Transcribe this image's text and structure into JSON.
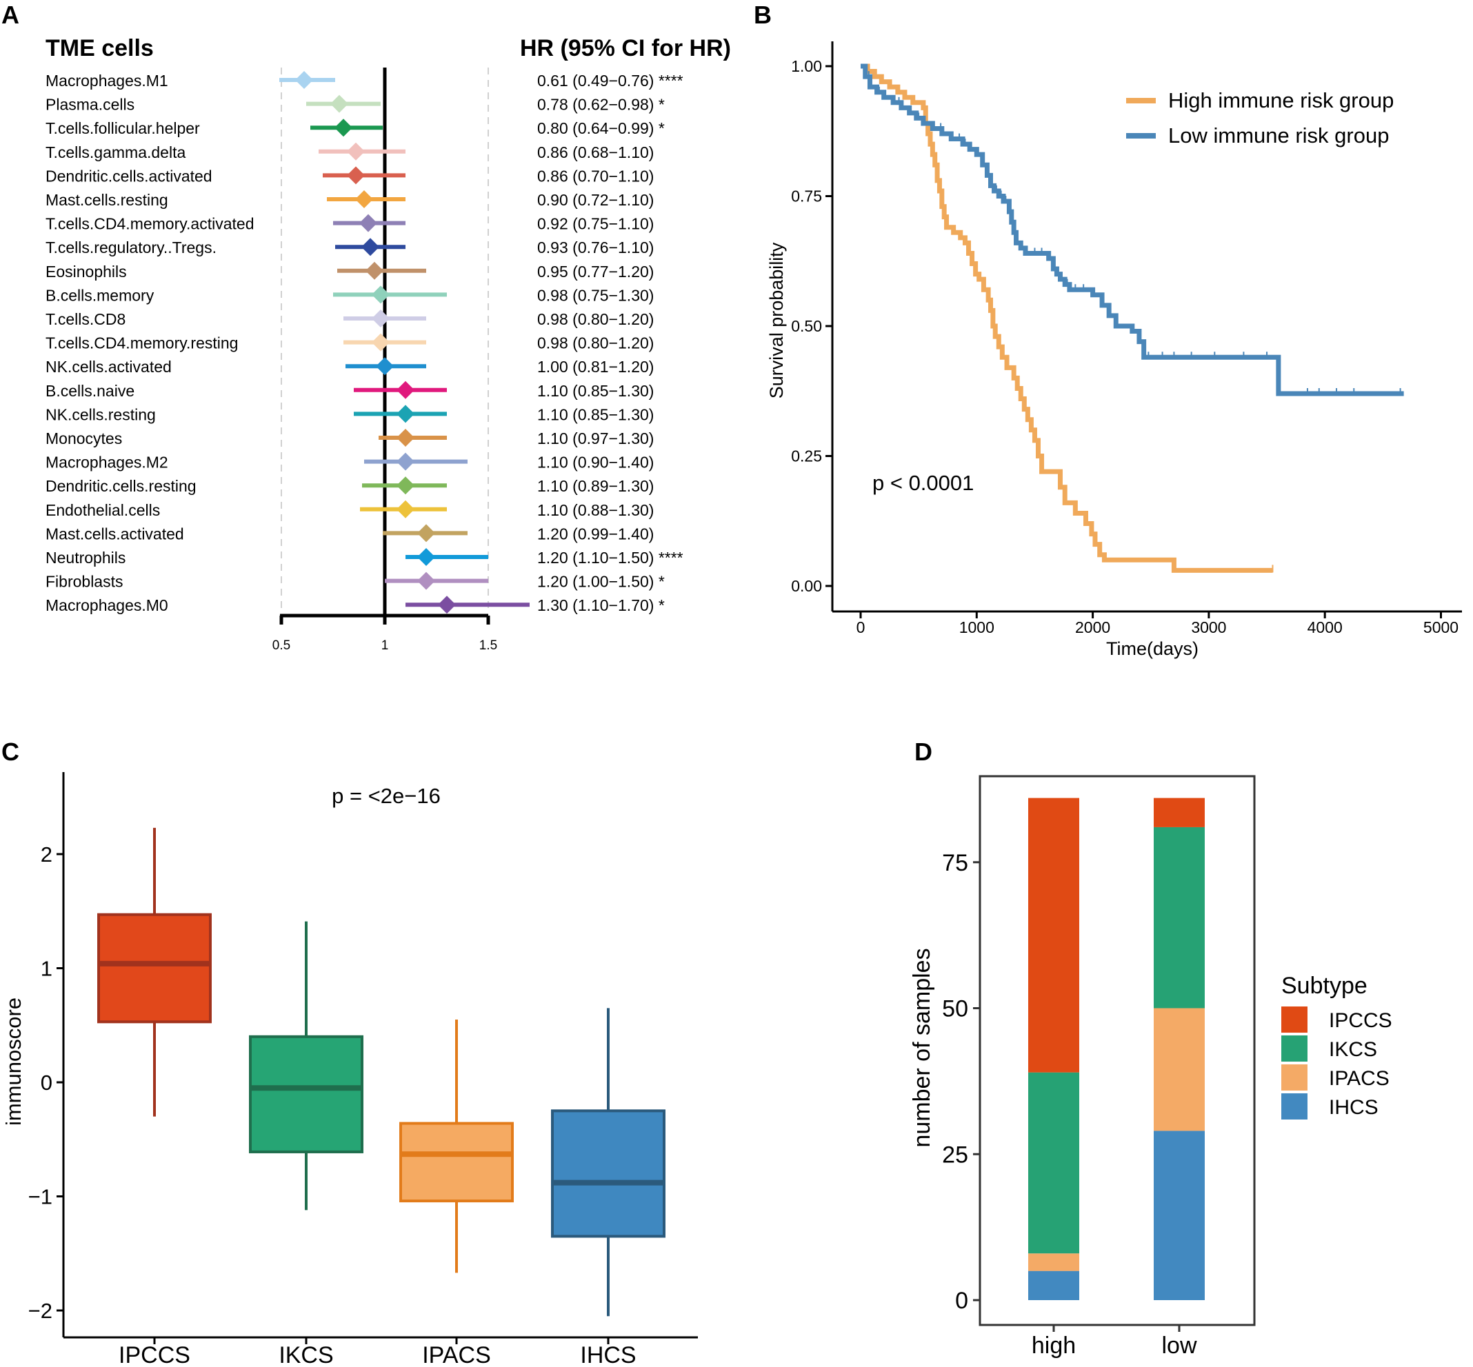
{
  "panels": {
    "A": "A",
    "B": "B",
    "C": "C",
    "D": "D"
  },
  "chart_data": [
    {
      "id": "A",
      "type": "forest",
      "title_left": "TME cells",
      "title_right": "HR (95% CI for HR)",
      "xlim": [
        0.5,
        1.5
      ],
      "xticks": [
        0.5,
        1,
        1.5
      ],
      "xtick_labels": [
        "0.5",
        "1",
        "1.5"
      ],
      "rows": [
        {
          "label": "Macrophages.M1",
          "hr": 0.61,
          "lo": 0.49,
          "hi": 0.76,
          "text": "0.61 (0.49−0.76) ****",
          "color": "#a9d3f0"
        },
        {
          "label": "Plasma.cells",
          "hr": 0.78,
          "lo": 0.62,
          "hi": 0.98,
          "text": "0.78 (0.62−0.98) *",
          "color": "#c5e0bf"
        },
        {
          "label": "T.cells.follicular.helper",
          "hr": 0.8,
          "lo": 0.64,
          "hi": 0.99,
          "text": "0.80 (0.64−0.99) *",
          "color": "#1a9850"
        },
        {
          "label": "T.cells.gamma.delta",
          "hr": 0.86,
          "lo": 0.68,
          "hi": 1.1,
          "text": "0.86 (0.68−1.10)",
          "color": "#f1c0bc"
        },
        {
          "label": "Dendritic.cells.activated",
          "hr": 0.86,
          "lo": 0.7,
          "hi": 1.1,
          "text": "0.86 (0.70−1.10)",
          "color": "#d9604f"
        },
        {
          "label": "Mast.cells.resting",
          "hr": 0.9,
          "lo": 0.72,
          "hi": 1.1,
          "text": "0.90 (0.72−1.10)",
          "color": "#f2a640"
        },
        {
          "label": "T.cells.CD4.memory.activated",
          "hr": 0.92,
          "lo": 0.75,
          "hi": 1.1,
          "text": "0.92 (0.75−1.10)",
          "color": "#8e80b5"
        },
        {
          "label": "T.cells.regulatory..Tregs.",
          "hr": 0.93,
          "lo": 0.76,
          "hi": 1.1,
          "text": "0.93 (0.76−1.10)",
          "color": "#2e4a9e"
        },
        {
          "label": "Eosinophils",
          "hr": 0.95,
          "lo": 0.77,
          "hi": 1.2,
          "text": "0.95 (0.77−1.20)",
          "color": "#c0916a"
        },
        {
          "label": "B.cells.memory",
          "hr": 0.98,
          "lo": 0.75,
          "hi": 1.3,
          "text": "0.98 (0.75−1.30)",
          "color": "#8fd1bb"
        },
        {
          "label": "T.cells.CD8",
          "hr": 0.98,
          "lo": 0.8,
          "hi": 1.2,
          "text": "0.98 (0.80−1.20)",
          "color": "#cfcde6"
        },
        {
          "label": "T.cells.CD4.memory.resting",
          "hr": 0.98,
          "lo": 0.8,
          "hi": 1.2,
          "text": "0.98 (0.80−1.20)",
          "color": "#f8d6b0"
        },
        {
          "label": "NK.cells.activated",
          "hr": 1.0,
          "lo": 0.81,
          "hi": 1.2,
          "text": "1.00 (0.81−1.20)",
          "color": "#1f8fcf"
        },
        {
          "label": "B.cells.naive",
          "hr": 1.1,
          "lo": 0.85,
          "hi": 1.3,
          "text": "1.10 (0.85−1.30)",
          "color": "#e0197d"
        },
        {
          "label": "NK.cells.resting",
          "hr": 1.1,
          "lo": 0.85,
          "hi": 1.3,
          "text": "1.10 (0.85−1.30)",
          "color": "#1ba3b3"
        },
        {
          "label": "Monocytes",
          "hr": 1.1,
          "lo": 0.97,
          "hi": 1.3,
          "text": "1.10 (0.97−1.30)",
          "color": "#d99248"
        },
        {
          "label": "Macrophages.M2",
          "hr": 1.1,
          "lo": 0.9,
          "hi": 1.4,
          "text": "1.10 (0.90−1.40)",
          "color": "#8ea2cf"
        },
        {
          "label": "Dendritic.cells.resting",
          "hr": 1.1,
          "lo": 0.89,
          "hi": 1.3,
          "text": "1.10 (0.89−1.30)",
          "color": "#7fb85a"
        },
        {
          "label": "Endothelial.cells",
          "hr": 1.1,
          "lo": 0.88,
          "hi": 1.3,
          "text": "1.10 (0.88−1.30)",
          "color": "#edc23a"
        },
        {
          "label": "Mast.cells.activated",
          "hr": 1.2,
          "lo": 0.99,
          "hi": 1.4,
          "text": "1.20 (0.99−1.40)",
          "color": "#c2a360"
        },
        {
          "label": "Neutrophils",
          "hr": 1.2,
          "lo": 1.1,
          "hi": 1.5,
          "text": "1.20 (1.10−1.50) ****",
          "color": "#119ad9"
        },
        {
          "label": "Fibroblasts",
          "hr": 1.2,
          "lo": 1.0,
          "hi": 1.5,
          "text": "1.20 (1.00−1.50) *",
          "color": "#b08fc0"
        },
        {
          "label": "Macrophages.M0",
          "hr": 1.3,
          "lo": 1.1,
          "hi": 1.7,
          "text": "1.30 (1.10−1.70) *",
          "color": "#7b4ea1"
        }
      ]
    },
    {
      "id": "B",
      "type": "line",
      "subtype": "kaplan-meier",
      "xlabel": "Time(days)",
      "ylabel": "Survival probability",
      "xlim": [
        -100,
        5000
      ],
      "ylim": [
        0,
        1
      ],
      "xticks": [
        0,
        1000,
        2000,
        3000,
        4000,
        5000
      ],
      "xtick_labels": [
        "0",
        "1000",
        "2000",
        "3000",
        "4000",
        "5000"
      ],
      "yticks": [
        0,
        0.25,
        0.5,
        0.75,
        1
      ],
      "ytick_labels": [
        "0.00",
        "0.25",
        "0.50",
        "0.75",
        "1.00"
      ],
      "annotation": "p < 0.0001",
      "legend_position": "top-right",
      "series": [
        {
          "name": "High immune risk group",
          "color": "#f0a95a",
          "points": [
            [
              0,
              1.0
            ],
            [
              60,
              0.99
            ],
            [
              120,
              0.98
            ],
            [
              180,
              0.97
            ],
            [
              250,
              0.96
            ],
            [
              320,
              0.95
            ],
            [
              380,
              0.94
            ],
            [
              450,
              0.93
            ],
            [
              540,
              0.92
            ],
            [
              560,
              0.89
            ],
            [
              580,
              0.87
            ],
            [
              600,
              0.85
            ],
            [
              620,
              0.83
            ],
            [
              640,
              0.81
            ],
            [
              660,
              0.78
            ],
            [
              680,
              0.76
            ],
            [
              700,
              0.73
            ],
            [
              720,
              0.71
            ],
            [
              740,
              0.69
            ],
            [
              800,
              0.68
            ],
            [
              860,
              0.67
            ],
            [
              900,
              0.66
            ],
            [
              930,
              0.64
            ],
            [
              960,
              0.62
            ],
            [
              990,
              0.6
            ],
            [
              1020,
              0.59
            ],
            [
              1060,
              0.57
            ],
            [
              1100,
              0.55
            ],
            [
              1120,
              0.53
            ],
            [
              1140,
              0.5
            ],
            [
              1160,
              0.48
            ],
            [
              1190,
              0.46
            ],
            [
              1220,
              0.44
            ],
            [
              1260,
              0.42
            ],
            [
              1320,
              0.4
            ],
            [
              1350,
              0.38
            ],
            [
              1380,
              0.36
            ],
            [
              1410,
              0.34
            ],
            [
              1440,
              0.32
            ],
            [
              1470,
              0.3
            ],
            [
              1500,
              0.28
            ],
            [
              1530,
              0.25
            ],
            [
              1560,
              0.22
            ],
            [
              1720,
              0.19
            ],
            [
              1760,
              0.16
            ],
            [
              1850,
              0.14
            ],
            [
              1940,
              0.12
            ],
            [
              1990,
              0.1
            ],
            [
              2020,
              0.08
            ],
            [
              2060,
              0.06
            ],
            [
              2100,
              0.05
            ],
            [
              2700,
              0.03
            ],
            [
              3550,
              0.03
            ]
          ],
          "censor": [
            1330,
            1360,
            1560,
            1720,
            3550
          ]
        },
        {
          "name": "Low immune risk group",
          "color": "#4a86b8",
          "points": [
            [
              0,
              1.0
            ],
            [
              40,
              0.98
            ],
            [
              80,
              0.96
            ],
            [
              140,
              0.95
            ],
            [
              200,
              0.94
            ],
            [
              280,
              0.93
            ],
            [
              350,
              0.92
            ],
            [
              420,
              0.91
            ],
            [
              480,
              0.9
            ],
            [
              540,
              0.89
            ],
            [
              620,
              0.88
            ],
            [
              700,
              0.87
            ],
            [
              780,
              0.86
            ],
            [
              880,
              0.85
            ],
            [
              940,
              0.84
            ],
            [
              1000,
              0.83
            ],
            [
              1050,
              0.81
            ],
            [
              1090,
              0.79
            ],
            [
              1120,
              0.77
            ],
            [
              1150,
              0.76
            ],
            [
              1190,
              0.75
            ],
            [
              1230,
              0.74
            ],
            [
              1280,
              0.72
            ],
            [
              1300,
              0.7
            ],
            [
              1320,
              0.68
            ],
            [
              1340,
              0.66
            ],
            [
              1380,
              0.65
            ],
            [
              1420,
              0.64
            ],
            [
              1620,
              0.63
            ],
            [
              1660,
              0.61
            ],
            [
              1690,
              0.6
            ],
            [
              1720,
              0.59
            ],
            [
              1760,
              0.58
            ],
            [
              1800,
              0.57
            ],
            [
              2000,
              0.56
            ],
            [
              2080,
              0.54
            ],
            [
              2140,
              0.52
            ],
            [
              2200,
              0.5
            ],
            [
              2340,
              0.49
            ],
            [
              2400,
              0.47
            ],
            [
              2440,
              0.44
            ],
            [
              3600,
              0.37
            ],
            [
              4680,
              0.37
            ]
          ],
          "censor": [
            70,
            160,
            330,
            500,
            690,
            780,
            850,
            900,
            1100,
            1170,
            1210,
            1250,
            1500,
            1560,
            1780,
            1850,
            1920,
            2480,
            2600,
            2700,
            2850,
            3050,
            3300,
            3500,
            3850,
            3950,
            4100,
            4250,
            4650
          ]
        }
      ]
    },
    {
      "id": "C",
      "type": "box",
      "ylabel": "immunoscore",
      "annotation": "p = <2e−16",
      "ylim": [
        -2.2,
        2.65
      ],
      "yticks": [
        -2,
        -1,
        0,
        1,
        2
      ],
      "ytick_labels": [
        "−2",
        "−1",
        "0",
        "1",
        "2"
      ],
      "categories": [
        "IPCCS",
        "IKCS",
        "IPACS",
        "IHCS"
      ],
      "boxes": [
        {
          "name": "IPCCS",
          "min": -0.3,
          "q1": 0.53,
          "median": 1.04,
          "q3": 1.47,
          "max": 2.23,
          "fill": "#e1481b",
          "stroke": "#a1321d"
        },
        {
          "name": "IKCS",
          "min": -1.12,
          "q1": -0.61,
          "median": -0.05,
          "q3": 0.4,
          "max": 1.41,
          "fill": "#26a574",
          "stroke": "#1f6e4d"
        },
        {
          "name": "IPACS",
          "min": -1.67,
          "q1": -1.04,
          "median": -0.63,
          "q3": -0.36,
          "max": 0.55,
          "fill": "#f5aa62",
          "stroke": "#e27b1a"
        },
        {
          "name": "IHCS",
          "min": -2.05,
          "q1": -1.35,
          "median": -0.88,
          "q3": -0.25,
          "max": 0.65,
          "fill": "#3f88c0",
          "stroke": "#2b5a7c"
        }
      ]
    },
    {
      "id": "D",
      "type": "bar",
      "stacked": true,
      "ylabel": "number of samples",
      "ylim": [
        -2.5,
        87
      ],
      "yticks": [
        0,
        25,
        50,
        75
      ],
      "ytick_labels": [
        "0",
        "25",
        "50",
        "75"
      ],
      "categories": [
        "high",
        "low"
      ],
      "legend_title": "Subtype",
      "legend_position": "right",
      "series": [
        {
          "name": "IHCS",
          "values": [
            5,
            29
          ],
          "color": "#4289c0"
        },
        {
          "name": "IPACS",
          "values": [
            3,
            21
          ],
          "color": "#f4aa66"
        },
        {
          "name": "IKCS",
          "values": [
            31,
            31
          ],
          "color": "#26a274"
        },
        {
          "name": "IPCCS",
          "values": [
            47,
            5
          ],
          "color": "#e04a14"
        }
      ],
      "legend_order": [
        "IPCCS",
        "IKCS",
        "IPACS",
        "IHCS"
      ]
    }
  ]
}
